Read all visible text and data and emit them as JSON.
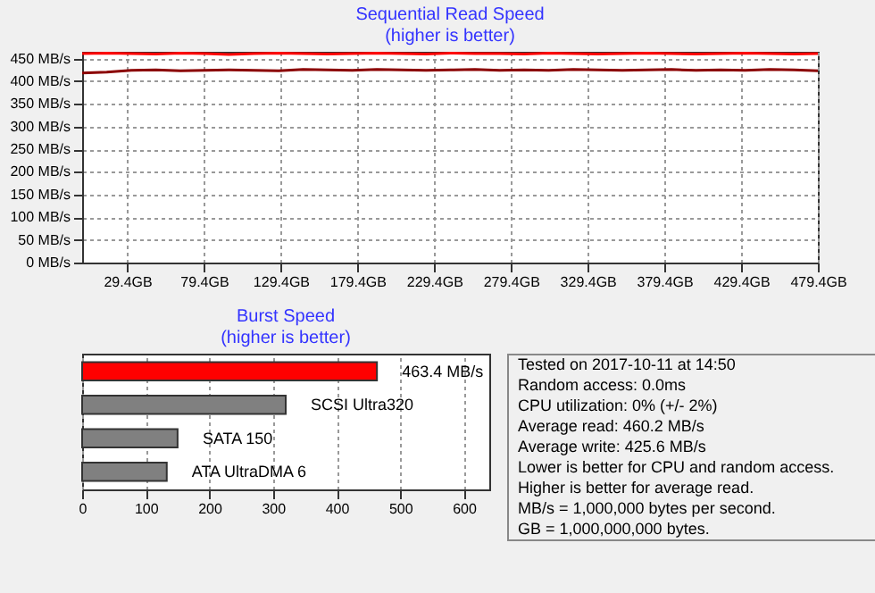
{
  "chart_data": [
    {
      "type": "line",
      "title": "Sequential Read Speed",
      "subtitle": "(higher is better)",
      "x": [
        0,
        16,
        32,
        48,
        64,
        80,
        96,
        112,
        128,
        144,
        160,
        176,
        192,
        208,
        224,
        240,
        256,
        272,
        288,
        304,
        320,
        336,
        352,
        368,
        384,
        400,
        416,
        432,
        448,
        464,
        479.4
      ],
      "series": [
        {
          "color": "#ff0000",
          "values": [
            461,
            462,
            461,
            460,
            462,
            461,
            459,
            461,
            462,
            461,
            460,
            461,
            462,
            461,
            460,
            462,
            461,
            461,
            460,
            462,
            461,
            460,
            461,
            462,
            461,
            460,
            461,
            462,
            461,
            460,
            461
          ]
        },
        {
          "color": "#8b0000",
          "values": [
            418,
            420,
            424,
            425,
            423,
            424,
            425,
            424,
            423,
            426,
            425,
            424,
            426,
            425,
            424,
            425,
            426,
            424,
            425,
            424,
            426,
            425,
            424,
            425,
            426,
            424,
            425,
            424,
            426,
            425,
            423
          ]
        }
      ],
      "xlim": [
        0,
        479.4
      ],
      "ylim": [
        0,
        465
      ],
      "xticks": [
        {
          "value": 29.4,
          "label": "29.4GB"
        },
        {
          "value": 79.4,
          "label": "79.4GB"
        },
        {
          "value": 129.4,
          "label": "129.4GB"
        },
        {
          "value": 179.4,
          "label": "179.4GB"
        },
        {
          "value": 229.4,
          "label": "229.4GB"
        },
        {
          "value": 279.4,
          "label": "279.4GB"
        },
        {
          "value": 329.4,
          "label": "329.4GB"
        },
        {
          "value": 379.4,
          "label": "379.4GB"
        },
        {
          "value": 429.4,
          "label": "429.4GB"
        },
        {
          "value": 479.4,
          "label": "479.4GB"
        }
      ],
      "yticks": [
        {
          "value": 0,
          "label": "0 MB/s"
        },
        {
          "value": 50,
          "label": "50 MB/s"
        },
        {
          "value": 100,
          "label": "100 MB/s"
        },
        {
          "value": 150,
          "label": "150 MB/s"
        },
        {
          "value": 200,
          "label": "200 MB/s"
        },
        {
          "value": 250,
          "label": "250 MB/s"
        },
        {
          "value": 300,
          "label": "300 MB/s"
        },
        {
          "value": 350,
          "label": "350 MB/s"
        },
        {
          "value": 400,
          "label": "400 MB/s"
        },
        {
          "value": 450,
          "label": "450 MB/s"
        }
      ],
      "grid": true
    },
    {
      "type": "bar",
      "orientation": "horizontal",
      "title": "Burst Speed",
      "subtitle": "(higher is better)",
      "categories": [
        null,
        "SCSI Ultra320",
        "SATA 150",
        "ATA UltraDMA 6"
      ],
      "values": [
        463.4,
        320,
        150,
        133
      ],
      "colors": [
        "#ff0000",
        "#808080",
        "#808080",
        "#808080"
      ],
      "value_labels": [
        "463.4 MB/s",
        null,
        null,
        null
      ],
      "xlim": [
        0,
        640
      ],
      "xticks": [
        0,
        100,
        200,
        300,
        400,
        500,
        600
      ],
      "grid": "x"
    },
    {
      "type": "other",
      "annotations": [
        "Tested on 2017-10-11 at 14:50",
        "Random access: 0.0ms",
        "CPU utilization: 0% (+/- 2%)",
        "Average read: 460.2 MB/s",
        "Average write: 425.6 MB/s",
        "Lower is better for CPU and random access.",
        "Higher is better for average read.",
        "MB/s = 1,000,000 bytes per second.",
        "GB = 1,000,000,000 bytes."
      ]
    }
  ]
}
